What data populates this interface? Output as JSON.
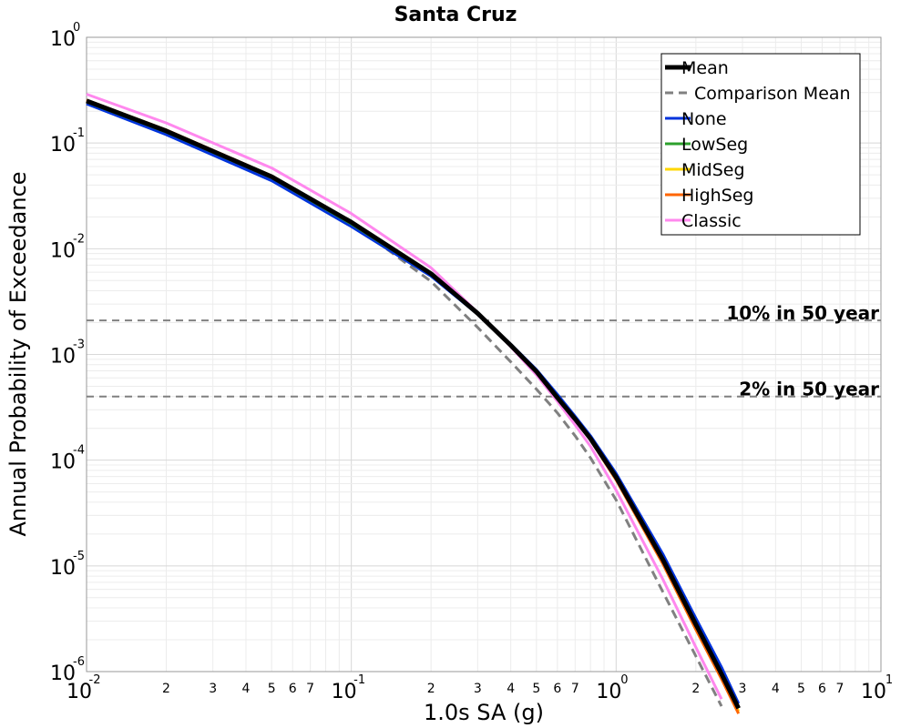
{
  "chart_data": {
    "type": "line",
    "title": "Santa Cruz",
    "xlabel": "1.0s SA (g)",
    "ylabel": "Annual Probability of Exceedance",
    "x_scale": "log",
    "y_scale": "log",
    "xlim": [
      0.01,
      10
    ],
    "ylim": [
      1e-06,
      1
    ],
    "grid": true,
    "legend_position": "top-right",
    "x_major_ticks": [
      {
        "base": "10",
        "exp": "-2"
      },
      {
        "base": "10",
        "exp": "-1"
      },
      {
        "base": "10",
        "exp": "0"
      },
      {
        "base": "10",
        "exp": "1"
      }
    ],
    "x_minor_labels": [
      "2",
      "3",
      "4",
      "5",
      "6",
      "7"
    ],
    "y_major_ticks": [
      {
        "base": "10",
        "exp": "0"
      },
      {
        "base": "10",
        "exp": "-1"
      },
      {
        "base": "10",
        "exp": "-2"
      },
      {
        "base": "10",
        "exp": "-3"
      },
      {
        "base": "10",
        "exp": "-4"
      },
      {
        "base": "10",
        "exp": "-5"
      },
      {
        "base": "10",
        "exp": "-6"
      }
    ],
    "reference_lines": [
      {
        "label": "10% in 50 year",
        "y": 0.0021,
        "color": "#808080"
      },
      {
        "label": "2% in 50 year",
        "y": 0.0004,
        "color": "#808080"
      }
    ],
    "series": [
      {
        "name": "Comparison Mean",
        "color": "#808080",
        "style": "dashed",
        "width": 3,
        "x": [
          0.01,
          0.02,
          0.05,
          0.1,
          0.2,
          0.3,
          0.4,
          0.5,
          0.6,
          0.7,
          0.8,
          1.0,
          1.5,
          2.0,
          2.5
        ],
        "y": [
          0.24,
          0.125,
          0.047,
          0.0175,
          0.0049,
          0.0018,
          0.00085,
          0.00047,
          0.00028,
          0.00017,
          0.000105,
          4.2e-05,
          5.7e-06,
          1.4e-06,
          4.7e-07
        ]
      },
      {
        "name": "None",
        "color": "#0033dd",
        "style": "solid",
        "width": 3,
        "x": [
          0.01,
          0.02,
          0.05,
          0.1,
          0.2,
          0.3,
          0.4,
          0.5,
          0.6,
          0.7,
          0.8,
          1.0,
          1.5,
          2.0,
          2.5,
          2.9
        ],
        "y": [
          0.235,
          0.12,
          0.044,
          0.0162,
          0.0055,
          0.0024,
          0.00125,
          0.00072,
          0.00042,
          0.00026,
          0.00017,
          7.5e-05,
          1.3e-05,
          3.2e-06,
          1.1e-06,
          5e-07
        ]
      },
      {
        "name": "LowSeg",
        "color": "#2ca02c",
        "style": "solid",
        "width": 3,
        "x": [
          0.01,
          0.02,
          0.05,
          0.1,
          0.2,
          0.3,
          0.4,
          0.5,
          0.6,
          0.7,
          0.8,
          1.0,
          1.5,
          2.0,
          2.5,
          2.9
        ],
        "y": [
          0.245,
          0.127,
          0.047,
          0.0172,
          0.0057,
          0.0024,
          0.00123,
          0.0007,
          0.0004,
          0.00025,
          0.000163,
          7e-05,
          1.18e-05,
          2.9e-06,
          9.5e-07,
          4.5e-07
        ]
      },
      {
        "name": "MidSeg",
        "color": "#ffd700",
        "style": "solid",
        "width": 3,
        "x": [
          0.01,
          0.02,
          0.05,
          0.1,
          0.2,
          0.3,
          0.4,
          0.5,
          0.6,
          0.7,
          0.8,
          1.0,
          1.5,
          2.0,
          2.5,
          2.9
        ],
        "y": [
          0.25,
          0.13,
          0.048,
          0.0177,
          0.0058,
          0.00245,
          0.00122,
          0.00069,
          0.00039,
          0.000245,
          0.00016,
          6.8e-05,
          1.12e-05,
          2.7e-06,
          9e-07,
          4.2e-07
        ]
      },
      {
        "name": "HighSeg",
        "color": "#ff6600",
        "style": "solid",
        "width": 3,
        "x": [
          0.01,
          0.02,
          0.05,
          0.1,
          0.2,
          0.3,
          0.4,
          0.5,
          0.6,
          0.7,
          0.8,
          1.0,
          1.5,
          2.0,
          2.5,
          2.9
        ],
        "y": [
          0.255,
          0.133,
          0.049,
          0.018,
          0.0059,
          0.00245,
          0.0012,
          0.00068,
          0.00038,
          0.00024,
          0.000155,
          6.5e-05,
          1.05e-05,
          2.5e-06,
          8.5e-07,
          4e-07
        ]
      },
      {
        "name": "Classic",
        "color": "#ff88ee",
        "style": "solid",
        "width": 3,
        "x": [
          0.01,
          0.02,
          0.05,
          0.1,
          0.2,
          0.3,
          0.4,
          0.5,
          0.6,
          0.7,
          0.8,
          1.0,
          1.5,
          2.0,
          2.5
        ],
        "y": [
          0.29,
          0.155,
          0.058,
          0.0215,
          0.0066,
          0.0025,
          0.00118,
          0.00064,
          0.00036,
          0.000215,
          0.000135,
          5.2e-05,
          7.5e-06,
          1.7e-06,
          5.5e-07
        ]
      },
      {
        "name": "Mean",
        "color": "#000000",
        "style": "solid",
        "width": 5,
        "x": [
          0.01,
          0.02,
          0.05,
          0.1,
          0.2,
          0.3,
          0.4,
          0.5,
          0.6,
          0.7,
          0.8,
          1.0,
          1.5,
          2.0,
          2.5,
          2.9
        ],
        "y": [
          0.25,
          0.13,
          0.048,
          0.0178,
          0.0058,
          0.00245,
          0.00122,
          0.00069,
          0.00039,
          0.000245,
          0.00016,
          6.9e-05,
          1.15e-05,
          2.8e-06,
          9.5e-07,
          4.5e-07
        ]
      }
    ],
    "legend": [
      {
        "name": "Mean",
        "color": "#000000",
        "style": "solid",
        "width": 5
      },
      {
        "name": "Comparison Mean",
        "color": "#808080",
        "style": "dashed",
        "width": 3
      },
      {
        "name": "None",
        "color": "#0033dd",
        "style": "solid",
        "width": 3
      },
      {
        "name": "LowSeg",
        "color": "#2ca02c",
        "style": "solid",
        "width": 3
      },
      {
        "name": "MidSeg",
        "color": "#ffd700",
        "style": "solid",
        "width": 3
      },
      {
        "name": "HighSeg",
        "color": "#ff6600",
        "style": "solid",
        "width": 3
      },
      {
        "name": "Classic",
        "color": "#ff88ee",
        "style": "solid",
        "width": 3
      }
    ]
  }
}
